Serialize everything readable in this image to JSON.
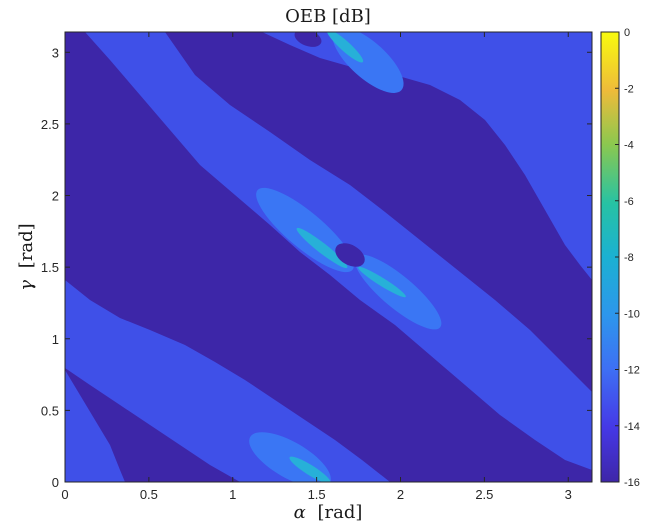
{
  "chart_data": {
    "type": "heatmap",
    "title": "OEB [dB]",
    "xlabel_symbol": "α",
    "xlabel_unit": "[rad]",
    "ylabel_symbol": "γ",
    "ylabel_unit": "[rad]",
    "xlim": [
      0,
      3.1416
    ],
    "ylim": [
      0,
      3.1416
    ],
    "x_ticks": [
      0,
      0.5,
      1,
      1.5,
      2,
      2.5,
      3
    ],
    "x_tick_labels": [
      "0",
      "0.5",
      "1",
      "1.5",
      "2",
      "2.5",
      "3"
    ],
    "y_ticks": [
      0,
      0.5,
      1,
      1.5,
      2,
      2.5,
      3
    ],
    "y_tick_labels": [
      "0",
      "0.5",
      "1",
      "1.5",
      "2",
      "2.5",
      "3"
    ],
    "colorbar": {
      "min": -16,
      "max": 0,
      "ticks": [
        0,
        -2,
        -4,
        -6,
        -8,
        -10,
        -12,
        -14,
        -16
      ],
      "tick_labels": [
        "0",
        "-2",
        "-4",
        "-6",
        "-8",
        "-10",
        "-12",
        "-14",
        "-16"
      ],
      "colormap": "parula"
    },
    "grid": false,
    "levels": {
      "background": -16,
      "bands": -14,
      "lobes": -13,
      "peaks": -10
    },
    "band_strip_centers_alpha_at_gamma0": [
      -0.32,
      1.32,
      2.97
    ],
    "band_slope_dalpha_dgamma": -0.72,
    "saddle_points": [
      {
        "alpha": 1.75,
        "gamma": 1.48
      },
      {
        "alpha": 1.57,
        "gamma": 0.0
      },
      {
        "alpha": 1.57,
        "gamma": 3.14
      }
    ],
    "colors": {
      "-16": "#3d26a8",
      "-14": "#3f50e8",
      "-13": "#3a76f4",
      "-10": "#27b0d8",
      "-6": "#2ec8a5",
      "-4": "#9bc94d",
      "-2": "#f4b83c",
      "0": "#f9fb0e"
    }
  }
}
